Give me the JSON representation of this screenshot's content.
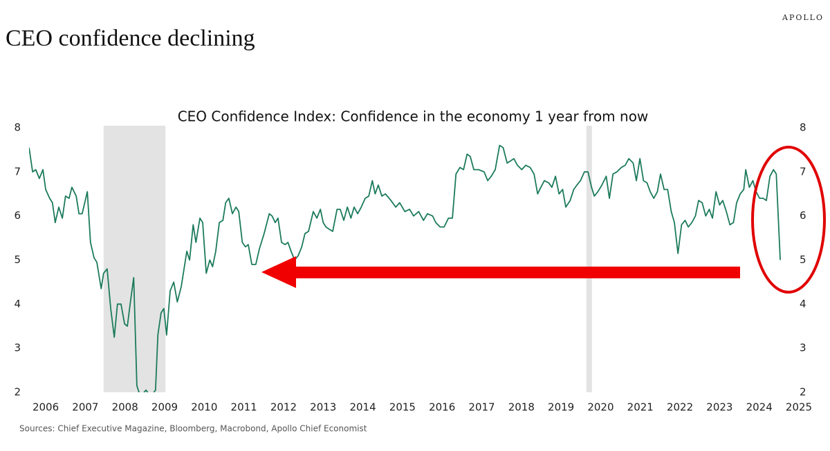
{
  "brand": "APOLLO",
  "headline": "CEO confidence declining",
  "source": "Sources: Chief Executive Magazine, Bloomberg, Macrobond, Apollo Chief Economist",
  "chart_data": {
    "type": "line",
    "title": "CEO Confidence Index: Confidence in the economy 1 year from now",
    "xlim": [
      2005.58,
      2025.0
    ],
    "xticks": [
      2006,
      2007,
      2008,
      2009,
      2010,
      2011,
      2012,
      2013,
      2014,
      2015,
      2016,
      2017,
      2018,
      2019,
      2020,
      2021,
      2022,
      2023,
      2024,
      2025
    ],
    "ylim": [
      2,
      8
    ],
    "yticks": [
      2,
      3,
      4,
      5,
      6,
      7,
      8
    ],
    "y2lim": [
      2,
      8
    ],
    "y2ticks": [
      2,
      3,
      4,
      5,
      6,
      7,
      8
    ],
    "recessions": [
      [
        2007.46,
        2009.02
      ],
      [
        2019.64,
        2019.78
      ]
    ],
    "x": [
      2005.58,
      2005.67,
      2005.75,
      2005.84,
      2005.93,
      2006.0,
      2006.1,
      2006.17,
      2006.24,
      2006.33,
      2006.42,
      2006.5,
      2006.59,
      2006.66,
      2006.77,
      2006.84,
      2006.92,
      2007.05,
      2007.13,
      2007.22,
      2007.29,
      2007.4,
      2007.46,
      2007.55,
      2007.64,
      2007.73,
      2007.81,
      2007.9,
      2007.99,
      2008.06,
      2008.13,
      2008.22,
      2008.3,
      2008.39,
      2008.53,
      2008.65,
      2008.77,
      2008.83,
      2008.91,
      2008.98,
      2009.05,
      2009.14,
      2009.23,
      2009.32,
      2009.42,
      2009.56,
      2009.63,
      2009.72,
      2009.79,
      2009.89,
      2009.96,
      2010.05,
      2010.14,
      2010.21,
      2010.29,
      2010.38,
      2010.47,
      2010.54,
      2010.62,
      2010.71,
      2010.8,
      2010.87,
      2010.96,
      2011.04,
      2011.11,
      2011.2,
      2011.3,
      2011.39,
      2011.51,
      2011.64,
      2011.71,
      2011.79,
      2011.86,
      2011.95,
      2012.04,
      2012.11,
      2012.19,
      2012.28,
      2012.37,
      2012.46,
      2012.54,
      2012.63,
      2012.75,
      2012.84,
      2012.93,
      2013.0,
      2013.07,
      2013.15,
      2013.24,
      2013.35,
      2013.43,
      2013.52,
      2013.61,
      2013.7,
      2013.78,
      2013.87,
      2013.96,
      2014.06,
      2014.15,
      2014.24,
      2014.31,
      2014.39,
      2014.48,
      2014.57,
      2014.71,
      2014.83,
      2014.93,
      2015.06,
      2015.18,
      2015.28,
      2015.41,
      2015.53,
      2015.63,
      2015.76,
      2015.84,
      2015.95,
      2016.05,
      2016.16,
      2016.26,
      2016.35,
      2016.45,
      2016.54,
      2016.63,
      2016.71,
      2016.8,
      2016.92,
      2017.06,
      2017.15,
      2017.24,
      2017.34,
      2017.45,
      2017.54,
      2017.64,
      2017.73,
      2017.81,
      2017.9,
      2018.01,
      2018.11,
      2018.22,
      2018.32,
      2018.41,
      2018.49,
      2018.58,
      2018.69,
      2018.77,
      2018.86,
      2018.95,
      2019.04,
      2019.12,
      2019.23,
      2019.32,
      2019.4,
      2019.49,
      2019.59,
      2019.68,
      2019.77,
      2019.84,
      2019.93,
      2020.03,
      2020.14,
      2020.22,
      2020.31,
      2020.41,
      2020.52,
      2020.62,
      2020.71,
      2020.82,
      2020.9,
      2020.99,
      2021.08,
      2021.17,
      2021.25,
      2021.34,
      2021.43,
      2021.51,
      2021.6,
      2021.69,
      2021.78,
      2021.86,
      2021.95,
      2022.04,
      2022.13,
      2022.21,
      2022.3,
      2022.39,
      2022.47,
      2022.56,
      2022.65,
      2022.74,
      2022.82,
      2022.91,
      2023.0,
      2023.08,
      2023.17,
      2023.26,
      2023.35,
      2023.43,
      2023.52,
      2023.61,
      2023.66,
      2023.75,
      2023.84,
      2023.92,
      2024.01,
      2024.1,
      2024.18,
      2024.27,
      2024.36,
      2024.43,
      2024.53
    ],
    "series": [
      {
        "color": "#1b7a5c",
        "values": [
          7.55,
          7.0,
          7.05,
          6.85,
          7.05,
          6.6,
          6.4,
          6.3,
          5.85,
          6.2,
          5.95,
          6.45,
          6.4,
          6.65,
          6.45,
          6.05,
          6.05,
          6.55,
          5.4,
          5.05,
          4.95,
          4.35,
          4.7,
          4.8,
          3.9,
          3.25,
          4.0,
          4.0,
          3.55,
          3.5,
          4.0,
          4.6,
          2.15,
          1.9,
          2.05,
          1.9,
          2.05,
          3.3,
          3.8,
          3.9,
          3.3,
          4.3,
          4.5,
          4.05,
          4.4,
          5.2,
          5.0,
          5.8,
          5.4,
          5.95,
          5.85,
          4.7,
          5.0,
          4.85,
          5.2,
          5.85,
          5.9,
          6.3,
          6.4,
          6.05,
          6.2,
          6.1,
          5.4,
          5.3,
          5.35,
          4.9,
          4.9,
          5.25,
          5.6,
          6.05,
          6.0,
          5.85,
          5.95,
          5.4,
          5.35,
          5.4,
          5.2,
          5.0,
          5.1,
          5.3,
          5.6,
          5.65,
          6.1,
          5.95,
          6.15,
          5.85,
          5.75,
          5.7,
          5.65,
          6.15,
          6.15,
          5.9,
          6.2,
          5.95,
          6.2,
          6.05,
          6.2,
          6.4,
          6.45,
          6.8,
          6.5,
          6.7,
          6.45,
          6.5,
          6.35,
          6.2,
          6.3,
          6.1,
          6.15,
          6.0,
          6.1,
          5.9,
          6.05,
          6.0,
          5.85,
          5.75,
          5.75,
          5.95,
          5.95,
          6.95,
          7.1,
          7.05,
          7.4,
          7.35,
          7.05,
          7.05,
          7.0,
          6.8,
          6.9,
          7.05,
          7.6,
          7.55,
          7.2,
          7.25,
          7.3,
          7.15,
          7.05,
          7.15,
          7.1,
          6.95,
          6.5,
          6.65,
          6.8,
          6.75,
          6.65,
          6.9,
          6.5,
          6.6,
          6.2,
          6.35,
          6.6,
          6.7,
          6.8,
          7.0,
          7.0,
          6.65,
          6.45,
          6.55,
          6.7,
          6.9,
          6.4,
          6.95,
          7.0,
          7.1,
          7.15,
          7.3,
          7.2,
          6.8,
          7.3,
          6.8,
          6.75,
          6.55,
          6.4,
          6.55,
          6.95,
          6.6,
          6.6,
          6.1,
          5.85,
          5.15,
          5.8,
          5.9,
          5.75,
          5.85,
          6.0,
          6.35,
          6.3,
          6.0,
          6.15,
          5.95,
          6.55,
          6.25,
          6.35,
          6.1,
          5.8,
          5.85,
          6.3,
          6.5,
          6.6,
          7.05,
          6.65,
          6.8,
          6.55,
          6.4,
          6.4,
          6.35,
          6.9,
          7.05,
          6.95,
          5.0
        ]
      }
    ]
  }
}
